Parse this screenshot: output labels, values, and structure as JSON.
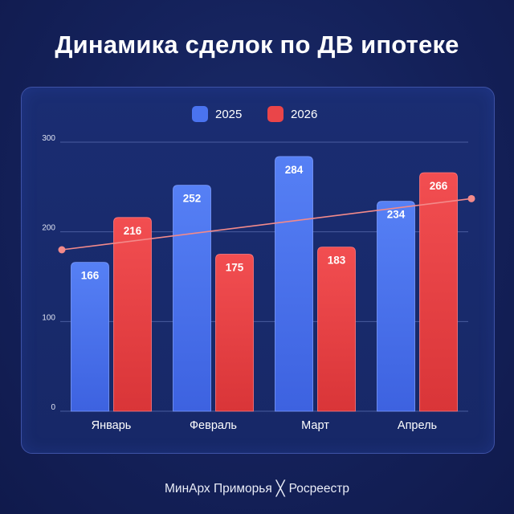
{
  "title": "Динамика сделок по ДВ ипотеке",
  "footer": {
    "left": "МинАрх Приморья",
    "sep": "╳",
    "right": "Росреестр"
  },
  "colors": {
    "s2025": "#4a73ef",
    "s2026": "#ea4549",
    "trend": "#f38a8a",
    "grid": "#5a6cb0",
    "label": "#ffffff",
    "tick": "#dfe3f2"
  },
  "chart_data": {
    "type": "bar",
    "title": "Динамика сделок по ДВ ипотеке",
    "categories": [
      "Январь",
      "Февраль",
      "Март",
      "Апрель"
    ],
    "series": [
      {
        "name": "2025",
        "values": [
          166,
          252,
          284,
          234
        ]
      },
      {
        "name": "2026",
        "values": [
          216,
          175,
          183,
          266
        ]
      }
    ],
    "trend": {
      "start": 180,
      "end": 237
    },
    "ylim": [
      0,
      300
    ],
    "yticks": [
      0,
      100,
      200,
      300
    ],
    "grid": true,
    "legend": "top-center",
    "xlabel": "",
    "ylabel": ""
  }
}
